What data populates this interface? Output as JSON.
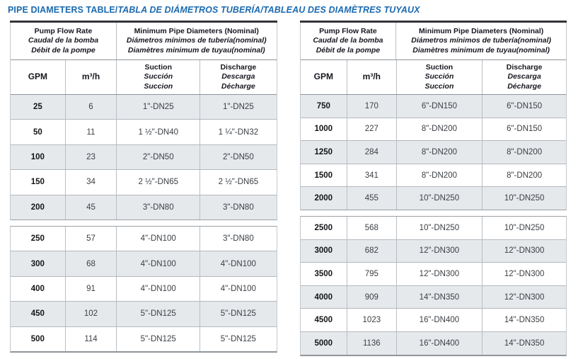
{
  "title": {
    "main": "PIPE DIAMETERS TABLE/",
    "alt": "TABLA DE DIÁMETROS TUBERÍA/TABLEAU DES DIAMÈTRES TUYAUX"
  },
  "colors": {
    "title_blue": "#1a6ab0",
    "row_shade": "#e6e9ec",
    "table_top_border": "#33353a"
  },
  "header": {
    "flow": [
      "Pump Flow Rate",
      "Caudal de la bomba",
      "Débit de la pompe"
    ],
    "diameters": [
      "Minimum Pipe Diameters (Nominal)",
      "Diámetros mínimos de tubería(nominal)",
      "Diamètres minimum de tuyau(nominal)"
    ],
    "gpm": "GPM",
    "m3h": "m³/h",
    "suction": [
      "Suction",
      "Succión",
      "Succion"
    ],
    "discharge": [
      "Discharge",
      "Descarga",
      "Décharge"
    ]
  },
  "left_table": {
    "groups": [
      {
        "rows": [
          {
            "gpm": "25",
            "m3h": "6",
            "suction": "1\"-DN25",
            "discharge": "1\"-DN25"
          },
          {
            "gpm": "50",
            "m3h": "11",
            "suction": "1 ½\"-DN40",
            "discharge": "1 ¼\"-DN32"
          },
          {
            "gpm": "100",
            "m3h": "23",
            "suction": "2\"-DN50",
            "discharge": "2\"-DN50"
          },
          {
            "gpm": "150",
            "m3h": "34",
            "suction": "2 ½\"-DN65",
            "discharge": "2 ½\"-DN65"
          },
          {
            "gpm": "200",
            "m3h": "45",
            "suction": "3\"-DN80",
            "discharge": "3\"-DN80"
          }
        ]
      },
      {
        "rows": [
          {
            "gpm": "250",
            "m3h": "57",
            "suction": "4\"-DN100",
            "discharge": "3\"-DN80"
          },
          {
            "gpm": "300",
            "m3h": "68",
            "suction": "4\"-DN100",
            "discharge": "4\"-DN100"
          },
          {
            "gpm": "400",
            "m3h": "91",
            "suction": "4\"-DN100",
            "discharge": "4\"-DN100"
          },
          {
            "gpm": "450",
            "m3h": "102",
            "suction": "5\"-DN125",
            "discharge": "5\"-DN125"
          },
          {
            "gpm": "500",
            "m3h": "114",
            "suction": "5\"-DN125",
            "discharge": "5\"-DN125"
          }
        ]
      }
    ]
  },
  "right_table": {
    "groups": [
      {
        "rows": [
          {
            "gpm": "750",
            "m3h": "170",
            "suction": "6\"-DN150",
            "discharge": "6\"-DN150"
          },
          {
            "gpm": "1000",
            "m3h": "227",
            "suction": "8\"-DN200",
            "discharge": "6\"-DN150"
          },
          {
            "gpm": "1250",
            "m3h": "284",
            "suction": "8\"-DN200",
            "discharge": "8\"-DN200"
          },
          {
            "gpm": "1500",
            "m3h": "341",
            "suction": "8\"-DN200",
            "discharge": "8\"-DN200"
          },
          {
            "gpm": "2000",
            "m3h": "455",
            "suction": "10\"-DN250",
            "discharge": "10\"-DN250"
          }
        ]
      },
      {
        "rows": [
          {
            "gpm": "2500",
            "m3h": "568",
            "suction": "10\"-DN250",
            "discharge": "10\"-DN250"
          },
          {
            "gpm": "3000",
            "m3h": "682",
            "suction": "12\"-DN300",
            "discharge": "12\"-DN300"
          },
          {
            "gpm": "3500",
            "m3h": "795",
            "suction": "12\"-DN300",
            "discharge": "12\"-DN300"
          },
          {
            "gpm": "4000",
            "m3h": "909",
            "suction": "14\"-DN350",
            "discharge": "12\"-DN300"
          },
          {
            "gpm": "4500",
            "m3h": "1023",
            "suction": "16\"-DN400",
            "discharge": "14\"-DN350"
          },
          {
            "gpm": "5000",
            "m3h": "1136",
            "suction": "16\"-DN400",
            "discharge": "14\"-DN350"
          }
        ]
      }
    ]
  }
}
